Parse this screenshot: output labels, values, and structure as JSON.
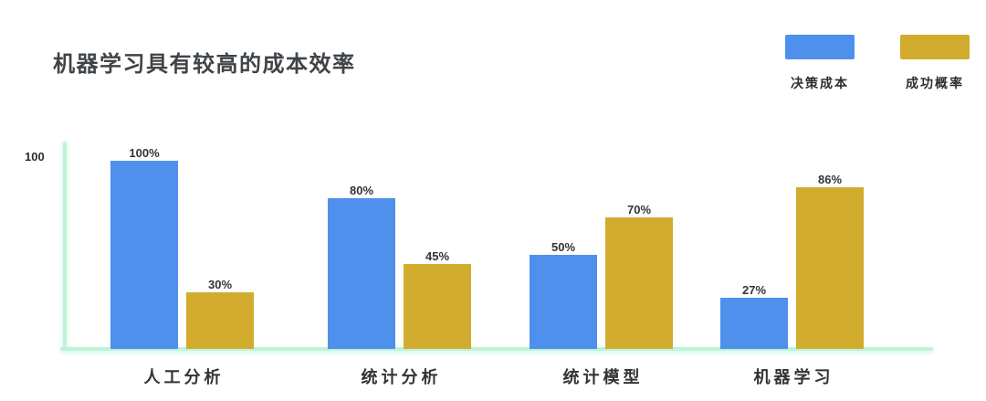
{
  "title": "机器学习具有较高的成本效率",
  "legend": {
    "items": [
      {
        "label": "决策成本",
        "color": "#4E90EC"
      },
      {
        "label": "成功概率",
        "color": "#D2AC2E"
      }
    ]
  },
  "y_axis": {
    "top_tick_label": "100"
  },
  "colors": {
    "series_cost_blue": "#4E90EC",
    "series_probability_gold": "#D2AC2E",
    "axis_mint_green": "#BEF3D8",
    "title_text": "#3F4449",
    "label_text": "#333333"
  },
  "chart_data": {
    "type": "bar",
    "title": "机器学习具有较高的成本效率",
    "categories": [
      "人工分析",
      "统计分析",
      "统计模型",
      "机器学习"
    ],
    "series": [
      {
        "name": "决策成本",
        "color": "#4E90EC",
        "values": [
          100,
          80,
          50,
          27
        ]
      },
      {
        "name": "成功概率",
        "color": "#D2AC2E",
        "values": [
          30,
          45,
          70,
          86
        ]
      }
    ],
    "value_label_suffix": "%",
    "value_labels": {
      "决策成本": [
        "100%",
        "80%",
        "50%",
        "27%"
      ],
      "成功概率": [
        "30%",
        "45%",
        "70%",
        "86%"
      ]
    },
    "xlabel": "",
    "ylabel": "",
    "ylim": [
      0,
      100
    ],
    "y_tick_labels": [
      "100"
    ],
    "grid": false,
    "legend_position": "top-right"
  }
}
